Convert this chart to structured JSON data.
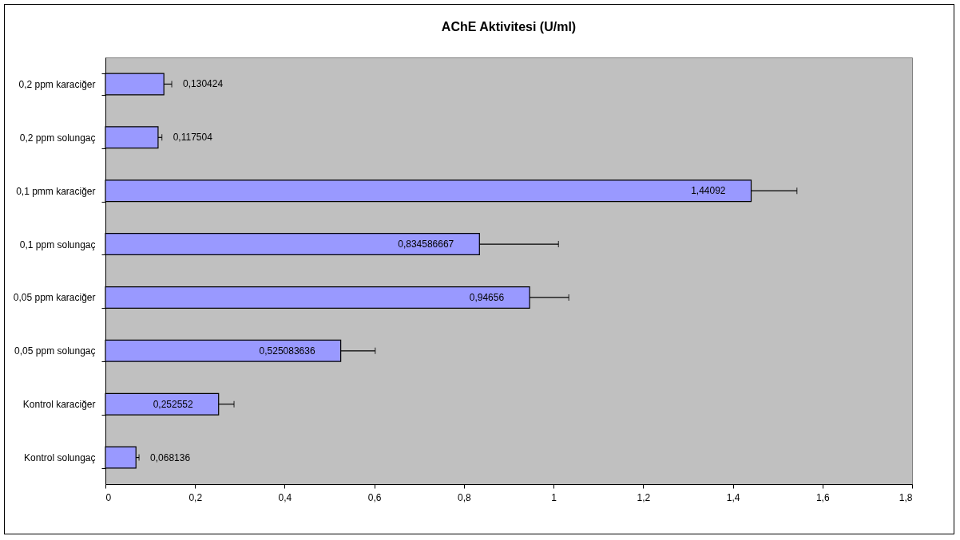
{
  "chart_data": {
    "type": "bar",
    "orientation": "horizontal",
    "title": "AChE Aktivitesi (U/ml)",
    "categories": [
      "0,2 ppm karaciğer",
      "0,2 ppm solungaç",
      "0,1 pmm karaciğer",
      "0,1 ppm solungaç",
      "0,05 ppm karaciğer",
      "0,05 ppm solungaç",
      "Kontrol karaciğer",
      "Kontrol solungaç"
    ],
    "values": [
      0.130424,
      0.117504,
      1.44092,
      0.834586667,
      0.94656,
      0.525083636,
      0.252552,
      0.068136
    ],
    "value_labels": [
      "0,130424",
      "0,117504",
      "1,44092",
      "0,834586667",
      "0,94656",
      "0,525083636",
      "0,252552",
      "0,068136"
    ],
    "errors": [
      [
        0.130424,
        0.148
      ],
      [
        0.117504,
        0.126
      ],
      [
        1.44092,
        1.543
      ],
      [
        0.834586667,
        1.011
      ],
      [
        0.94656,
        1.034
      ],
      [
        0.525083636,
        0.602
      ],
      [
        0.252552,
        0.287
      ],
      [
        0.068136,
        0.075
      ]
    ],
    "color": "#9999ff",
    "xlim": [
      0,
      1.8
    ],
    "xticks": [
      0,
      {
        "value": 0.2,
        "label": "0,2"
      },
      {
        "value": 0.4,
        "label": "0,4"
      },
      {
        "value": 0.6,
        "label": "0,6"
      },
      {
        "value": 0.8,
        "label": "0,8"
      },
      1,
      {
        "value": 1.2,
        "label": "1,2"
      },
      {
        "value": 1.4,
        "label": "1,4"
      },
      {
        "value": 1.6,
        "label": "1,6"
      },
      {
        "value": 1.8,
        "label": "1,8"
      }
    ],
    "grid": false
  }
}
